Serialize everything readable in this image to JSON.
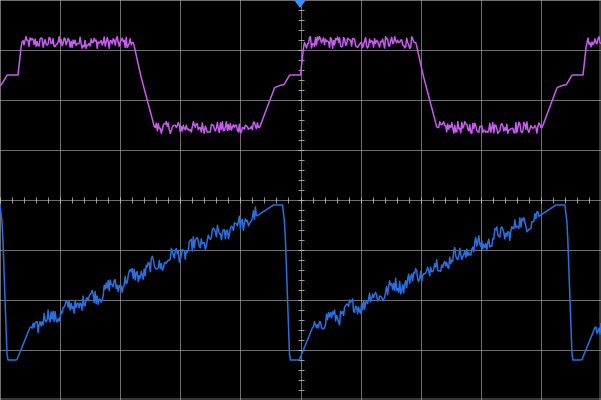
{
  "chart_data": {
    "type": "line",
    "title": "",
    "xlabel": "",
    "ylabel": "",
    "grid": true,
    "x_divisions": 10,
    "y_divisions": 8,
    "xlim": [
      -5,
      5
    ],
    "ylim": [
      -4,
      4
    ],
    "trigger_marker_x": 0,
    "colors": {
      "background": "#000000",
      "grid": "#c8c8c8",
      "trigger": "#3d8ef5"
    },
    "series": [
      {
        "color": "#c65cf0",
        "period_div": 4.7,
        "phase_div": -4.98,
        "x": [
          0,
          0.1,
          0.28,
          0.34,
          2.2,
          2.32,
          2.55,
          4.3,
          4.55,
          4.66,
          4.7
        ],
        "y": [
          2.3,
          2.5,
          2.5,
          3.15,
          3.15,
          2.5,
          1.45,
          1.45,
          2.25,
          2.3,
          2.3
        ],
        "noise_flat_high": 0.12,
        "noise_flat_low": 0.12
      },
      {
        "color": "#2a6fe0",
        "period_div": 4.7,
        "phase_div": -5.0,
        "x": [
          0,
          0.04,
          0.12,
          0.28,
          0.5,
          4.3,
          4.55,
          4.62,
          4.7
        ],
        "y": [
          -0.1,
          -0.5,
          -3.2,
          -3.2,
          -2.55,
          -0.3,
          -0.1,
          -0.1,
          -0.1
        ],
        "noise_ramp": 0.14
      }
    ]
  }
}
